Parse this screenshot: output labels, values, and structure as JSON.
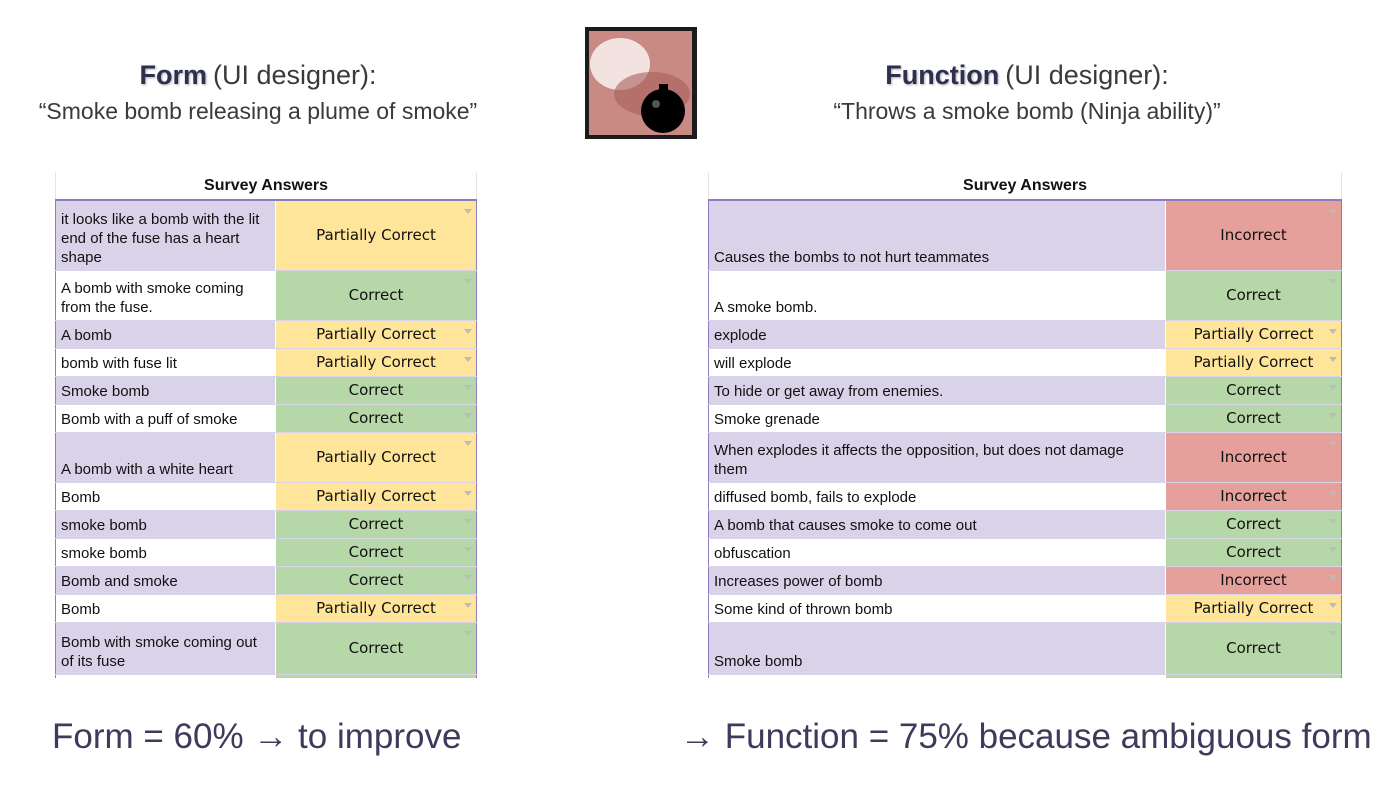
{
  "left": {
    "heading_bold": "Form",
    "heading_rest": "(UI designer):",
    "quote": "“Smoke bomb releasing a plume of smoke”",
    "table": {
      "title": "Survey Answers",
      "rows": [
        {
          "answer": "it looks like a bomb with the lit end of the fuse has a heart shape",
          "rating": "Partially Correct",
          "color": "#ffe599"
        },
        {
          "answer": "A bomb with smoke coming from the fuse.",
          "rating": "Correct",
          "color": "#b6d7a8"
        },
        {
          "answer": "A bomb",
          "rating": "Partially Correct",
          "color": "#ffe599"
        },
        {
          "answer": "bomb with fuse lit",
          "rating": "Partially Correct",
          "color": "#ffe599"
        },
        {
          "answer": "Smoke bomb",
          "rating": "Correct",
          "color": "#b6d7a8"
        },
        {
          "answer": "Bomb with a puff of smoke",
          "rating": "Correct",
          "color": "#b6d7a8"
        },
        {
          "answer": "A bomb with a white heart",
          "rating": "Partially Correct",
          "color": "#ffe599"
        },
        {
          "answer": "Bomb",
          "rating": "Partially Correct",
          "color": "#ffe599"
        },
        {
          "answer": "smoke bomb",
          "rating": "Correct",
          "color": "#b6d7a8"
        },
        {
          "answer": "smoke bomb",
          "rating": "Correct",
          "color": "#b6d7a8"
        },
        {
          "answer": "Bomb and smoke",
          "rating": "Correct",
          "color": "#b6d7a8"
        },
        {
          "answer": "Bomb",
          "rating": "Partially Correct",
          "color": "#ffe599"
        },
        {
          "answer": "Bomb with smoke coming out of its fuse",
          "rating": "Correct",
          "color": "#b6d7a8"
        }
      ]
    },
    "summary": "Form = 60% → to improve"
  },
  "right": {
    "heading_bold": "Function",
    "heading_rest": "(UI designer):",
    "quote": "“Throws a smoke bomb (Ninja ability)”",
    "table": {
      "title": "Survey Answers",
      "rows": [
        {
          "answer": "Causes the bombs to not hurt teammates",
          "rating": "Incorrect",
          "color": "#e6a09b"
        },
        {
          "answer": "A smoke bomb.",
          "rating": "Correct",
          "color": "#b6d7a8"
        },
        {
          "answer": "explode",
          "rating": "Partially Correct",
          "color": "#ffe599"
        },
        {
          "answer": "will explode",
          "rating": "Partially Correct",
          "color": "#ffe599"
        },
        {
          "answer": "To hide or get away from enemies.",
          "rating": "Correct",
          "color": "#b6d7a8"
        },
        {
          "answer": "Smoke grenade",
          "rating": "Correct",
          "color": "#b6d7a8"
        },
        {
          "answer": "When explodes it affects the opposition, but does not damage them",
          "rating": "Incorrect",
          "color": "#e6a09b"
        },
        {
          "answer": "diffused bomb, fails to explode",
          "rating": "Incorrect",
          "color": "#e6a09b"
        },
        {
          "answer": "A bomb that causes smoke to come out",
          "rating": "Correct",
          "color": "#b6d7a8"
        },
        {
          "answer": "obfuscation",
          "rating": "Correct",
          "color": "#b6d7a8"
        },
        {
          "answer": "Increases power of bomb",
          "rating": "Incorrect",
          "color": "#e6a09b"
        },
        {
          "answer": "Some kind of thrown bomb",
          "rating": "Partially Correct",
          "color": "#ffe599"
        },
        {
          "answer": "Smoke bomb",
          "rating": "Correct",
          "color": "#b6d7a8"
        }
      ]
    },
    "summary": "→ Function = 75% because ambiguous form"
  }
}
